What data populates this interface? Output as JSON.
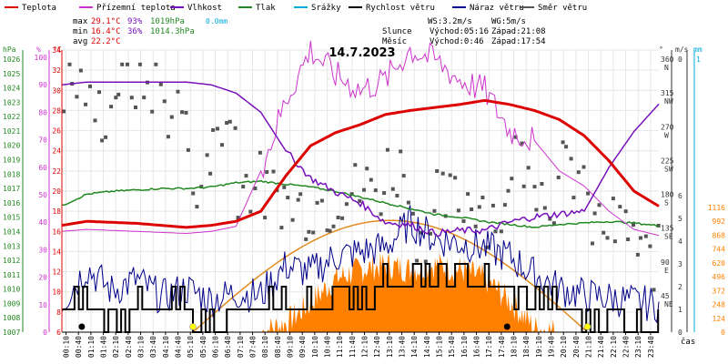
{
  "chart_data": {
    "type": "line",
    "title": "14.7.2023",
    "legend": [
      {
        "label": "Teplota",
        "color": "#dd0000"
      },
      {
        "label": "Přízemní teplota",
        "color": "#cc33cc"
      },
      {
        "label": "Vlhkost",
        "color": "#7711bb"
      },
      {
        "label": "Tlak",
        "color": "#228822"
      },
      {
        "label": "Srážky",
        "color": "#00aadd"
      },
      {
        "label": "Rychlost větru",
        "color": "#000000"
      },
      {
        "label": "Náraz větru",
        "color": "#000088"
      },
      {
        "label": "Směr větru",
        "color": "#555555"
      }
    ],
    "stats": {
      "max_label": "max",
      "max_temp": "29.1°C",
      "max_hum": "93%",
      "max_press": "1019hPa",
      "rain": "0.0mm",
      "min_label": "min",
      "min_temp": "16.4°C",
      "min_hum": "36%",
      "min_press": "1014.3hPa",
      "avg_label": "avg",
      "avg_temp": "22.2°C"
    },
    "info": {
      "ws": "WS:3.2m/s",
      "wg": "WG:5m/s",
      "sun_label": "Slunce",
      "sunrise": "Východ:05:16",
      "sunset": "Západ:21:08",
      "moon_label": "Měsíc",
      "moonrise": "Východ:0:46",
      "moonset": "Západ:17:54"
    },
    "axes": {
      "hpa_label": "hPa",
      "hum_label": "%",
      "temp_label": "°C",
      "deg_label": "°",
      "ms_label": "m/s",
      "mm_label": "mm",
      "xlabel": "čas",
      "hpa_ticks": [
        "1026",
        "1025",
        "1024",
        "1023",
        "1022",
        "1021",
        "1020",
        "1019",
        "1018",
        "1017",
        "1016",
        "1015",
        "1014",
        "1013",
        "1012",
        "1011",
        "1010",
        "1009",
        "1008",
        "1007"
      ],
      "hum_ticks": [
        "100",
        "90",
        "80",
        "70",
        "60",
        "50",
        "40",
        "30",
        "20",
        "10",
        "0"
      ],
      "temp_ticks": [
        "34",
        "32",
        "30",
        "28",
        "26",
        "24",
        "22",
        "20",
        "18",
        "16",
        "14",
        "12",
        "10",
        "8",
        "6"
      ],
      "dir_ticks": [
        {
          "deg": "360",
          "dir": "N"
        },
        {
          "deg": "315",
          "dir": "NW"
        },
        {
          "deg": "270",
          "dir": "W"
        },
        {
          "deg": "225",
          "dir": "SW"
        },
        {
          "deg": "180",
          "dir": "S"
        },
        {
          "deg": "135",
          "dir": "SE"
        },
        {
          "deg": "90",
          "dir": "E"
        },
        {
          "deg": "45",
          "dir": "NE"
        }
      ],
      "ms_ticks": [
        "6",
        "5",
        "4",
        "3",
        "2",
        "1",
        "0"
      ],
      "ms_top": "0",
      "mm_ticks": [
        "1116",
        "992",
        "868",
        "744",
        "620",
        "496",
        "372",
        "248",
        "124",
        "0"
      ],
      "mm_top": "1",
      "time_ticks": [
        "00:10",
        "00:40",
        "01:10",
        "01:40",
        "02:10",
        "02:40",
        "03:10",
        "03:40",
        "04:10",
        "04:40",
        "05:10",
        "05:40",
        "06:10",
        "06:40",
        "07:10",
        "07:40",
        "08:10",
        "08:40",
        "09:10",
        "09:40",
        "10:10",
        "10:40",
        "11:10",
        "11:40",
        "12:10",
        "12:40",
        "13:10",
        "13:40",
        "14:10",
        "14:40",
        "15:10",
        "15:40",
        "16:10",
        "16:40",
        "17:10",
        "17:40",
        "18:10",
        "18:40",
        "19:10",
        "19:40",
        "20:10",
        "20:40",
        "21:10",
        "21:40",
        "22:10",
        "22:40",
        "23:10",
        "23:40"
      ]
    },
    "x_hours": [
      0,
      1,
      2,
      3,
      4,
      5,
      6,
      7,
      8,
      9,
      10,
      11,
      12,
      13,
      14,
      15,
      16,
      17,
      18,
      19,
      20,
      21,
      22,
      23,
      24
    ],
    "series": [
      {
        "name": "Teplota",
        "unit": "°C",
        "values": [
          16.6,
          17.0,
          16.9,
          16.8,
          16.6,
          16.4,
          16.6,
          17.0,
          18.0,
          21.5,
          24.5,
          25.8,
          26.6,
          27.6,
          28.0,
          28.3,
          28.6,
          29.0,
          28.6,
          28.0,
          27.1,
          25.5,
          23.0,
          20.0,
          18.5
        ]
      },
      {
        "name": "Přízemní teplota",
        "unit": "°C",
        "values": [
          16.0,
          16.2,
          16.1,
          16.0,
          15.9,
          15.8,
          16.0,
          16.5,
          22.0,
          29.0,
          34.0,
          31.5,
          30.0,
          31.0,
          34.0,
          33.0,
          31.0,
          30.0,
          26.0,
          25.0,
          22.0,
          20.5,
          18.0,
          16.2,
          15.6
        ]
      },
      {
        "name": "Vlhkost",
        "unit": "%",
        "values": [
          90,
          91,
          91,
          91,
          91,
          91,
          90,
          87,
          80,
          66,
          56,
          51,
          47,
          40,
          39,
          36,
          37,
          37,
          40,
          42,
          43,
          44,
          60,
          73,
          83
        ]
      },
      {
        "name": "Tlak",
        "unit": "hPa",
        "values": [
          1015.8,
          1016.6,
          1016.8,
          1016.9,
          1017.0,
          1017.0,
          1017.1,
          1017.4,
          1017.5,
          1017.3,
          1017.1,
          1016.8,
          1016.4,
          1016.0,
          1015.6,
          1015.2,
          1015.0,
          1014.7,
          1014.5,
          1014.3,
          1014.5,
          1014.6,
          1014.7,
          1014.6,
          1014.4
        ]
      },
      {
        "name": "Srážky",
        "unit": "mm",
        "values": [
          0,
          0,
          0,
          0,
          0,
          0,
          0,
          0,
          0,
          0,
          0,
          0,
          0,
          0,
          0,
          0,
          0,
          0,
          0,
          0,
          0,
          0,
          0,
          0,
          0
        ]
      },
      {
        "name": "Rychlost větru",
        "unit": "m/s",
        "values": [
          0.8,
          1.5,
          0.8,
          1.2,
          0.8,
          1.1,
          0.7,
          0.9,
          0.8,
          1.3,
          1.2,
          1.6,
          1.8,
          2.0,
          2.3,
          2.2,
          2.5,
          2.1,
          1.9,
          1.4,
          1.0,
          0.8,
          0.7,
          0.4,
          0.5
        ]
      },
      {
        "name": "Náraz větru",
        "unit": "m/s",
        "values": [
          1.0,
          2.5,
          1.5,
          2.0,
          1.2,
          1.6,
          1.1,
          1.4,
          1.3,
          2.6,
          2.3,
          3.0,
          3.2,
          3.4,
          4.5,
          3.8,
          3.6,
          3.4,
          3.0,
          2.2,
          1.6,
          1.3,
          1.2,
          1.0,
          0.9
        ]
      },
      {
        "name": "Směr větru",
        "unit": "°",
        "values": [
          330,
          295,
          335,
          330,
          300,
          210,
          275,
          200,
          185,
          170,
          175,
          190,
          195,
          220,
          140,
          175,
          180,
          160,
          240,
          190,
          215,
          145,
          140,
          100,
          55
        ]
      }
    ],
    "solar_radiation": {
      "unit": "W/m2",
      "values": [
        0,
        0,
        0,
        0,
        0,
        0,
        0,
        0,
        0,
        80,
        260,
        480,
        560,
        600,
        560,
        600,
        560,
        480,
        280,
        40,
        0,
        0,
        0,
        0,
        0
      ]
    },
    "sun_elevation_curve": {
      "rise": 5.27,
      "set": 21.13,
      "max_mm": 1000
    },
    "colors": {
      "temp": "#dd0000",
      "ground": "#cc33cc",
      "hum": "#7711bb",
      "press": "#228822",
      "rain": "#00aadd",
      "wind": "#000000",
      "gust": "#000088",
      "dir": "#555555",
      "solar": "#ff8000",
      "sun": "#ffff00",
      "moon": "#000000"
    }
  }
}
